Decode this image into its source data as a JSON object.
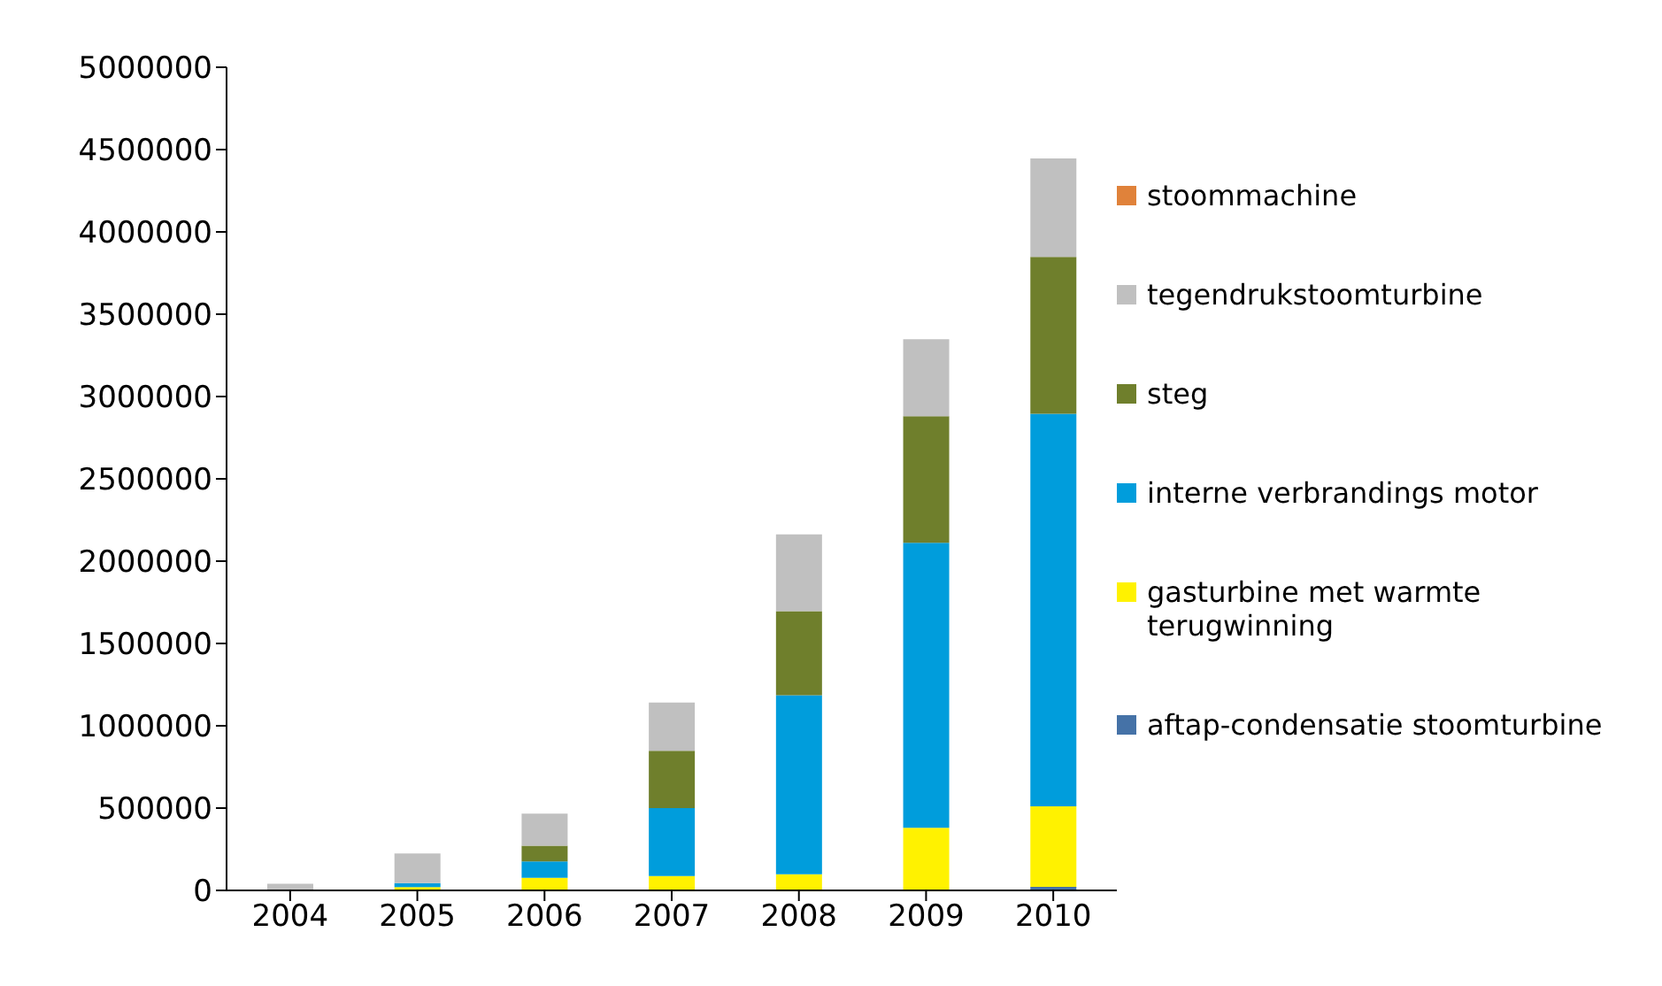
{
  "chart_data": {
    "type": "bar",
    "stacked": true,
    "categories": [
      "2004",
      "2005",
      "2006",
      "2007",
      "2008",
      "2009",
      "2010"
    ],
    "series": [
      {
        "name": "aftap-condensatie stoomturbine",
        "color": "#4572a7",
        "values": [
          0,
          0,
          0,
          0,
          0,
          0,
          22000
        ]
      },
      {
        "name": "gasturbine met warmte terugwinning",
        "color": "#fff200",
        "values": [
          0,
          20000,
          76000,
          87000,
          98000,
          380000,
          489000
        ]
      },
      {
        "name": "interne verbrandings motor",
        "color": "#009ddc",
        "values": [
          0,
          25000,
          100000,
          413000,
          1087000,
          1732000,
          2384000
        ]
      },
      {
        "name": "steg",
        "color": "#6f7f2c",
        "values": [
          0,
          0,
          95000,
          348000,
          511000,
          768000,
          953000
        ]
      },
      {
        "name": "tegendrukstoomturbine",
        "color": "#c0c0c0",
        "values": [
          40000,
          180000,
          195000,
          293000,
          467000,
          468000,
          598000
        ]
      },
      {
        "name": "stoommachine",
        "color": "#e0823a",
        "values": [
          0,
          0,
          0,
          0,
          0,
          0,
          0
        ]
      }
    ],
    "ylim": [
      0,
      5000000
    ],
    "yticks": [
      0,
      500000,
      1000000,
      1500000,
      2000000,
      2500000,
      3000000,
      3500000,
      4000000,
      4500000,
      5000000
    ],
    "grid": false,
    "legend": "right"
  }
}
